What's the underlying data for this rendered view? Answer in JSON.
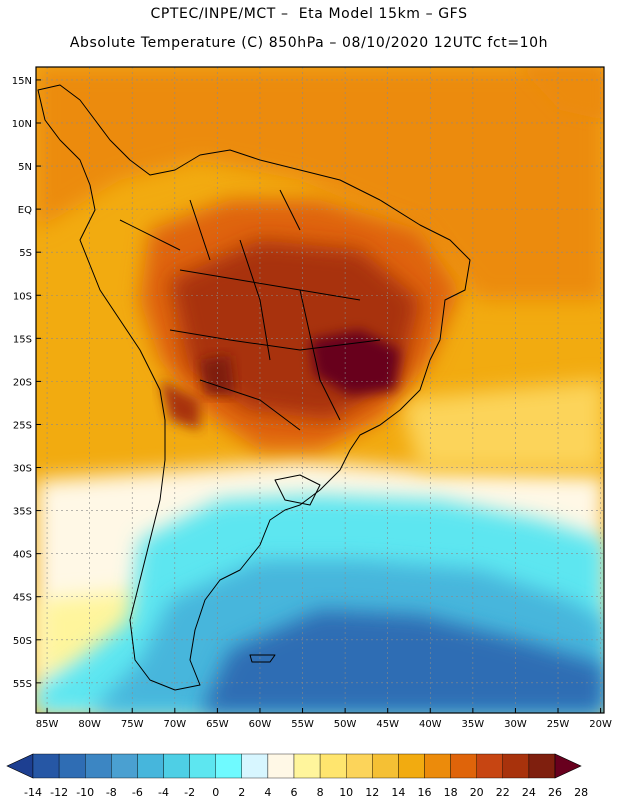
{
  "header": {
    "line1": "CPTEC/INPE/MCT –  Eta Model 15km – GFS",
    "line2": "Absolute Temperature (C) 850hPa – 08/10/2020 12UTC fct=10h"
  },
  "map": {
    "lat_labels": [
      "15N",
      "10N",
      "5N",
      "EQ",
      "5S",
      "10S",
      "15S",
      "20S",
      "25S",
      "30S",
      "35S",
      "40S",
      "45S",
      "50S",
      "55S"
    ],
    "lon_labels": [
      "85W",
      "80W",
      "75W",
      "70W",
      "65W",
      "60W",
      "55W",
      "50W",
      "45W",
      "40W",
      "35W",
      "30W",
      "25W",
      "20W"
    ],
    "lon_values": [
      -85,
      -80,
      -75,
      -70,
      -65,
      -60,
      -55,
      -50,
      -45,
      -40,
      -35,
      -30,
      -25,
      -20
    ],
    "lat_values": [
      15,
      10,
      5,
      0,
      -5,
      -10,
      -15,
      -20,
      -25,
      -30,
      -35,
      -40,
      -45,
      -50,
      -55
    ]
  },
  "colorbar": {
    "labels": [
      "-14",
      "-12",
      "-10",
      "-8",
      "-6",
      "-4",
      "-2",
      "0",
      "2",
      "4",
      "6",
      "8",
      "10",
      "12",
      "14",
      "16",
      "18",
      "20",
      "22",
      "24",
      "26",
      "28"
    ],
    "colors": [
      "#1d3f91",
      "#2657a5",
      "#2f6db4",
      "#3c86c3",
      "#4aa0d1",
      "#46b6dc",
      "#4ecfe5",
      "#5de6f0",
      "#6ffaff",
      "#d7f6ff",
      "#fff8e6",
      "#fff59c",
      "#ffe56e",
      "#fcd45a",
      "#f5c034",
      "#f2ab10",
      "#ec8b0b",
      "#df640a",
      "#c74512",
      "#a8320c",
      "#7f1f0e",
      "#68001e"
    ]
  }
}
